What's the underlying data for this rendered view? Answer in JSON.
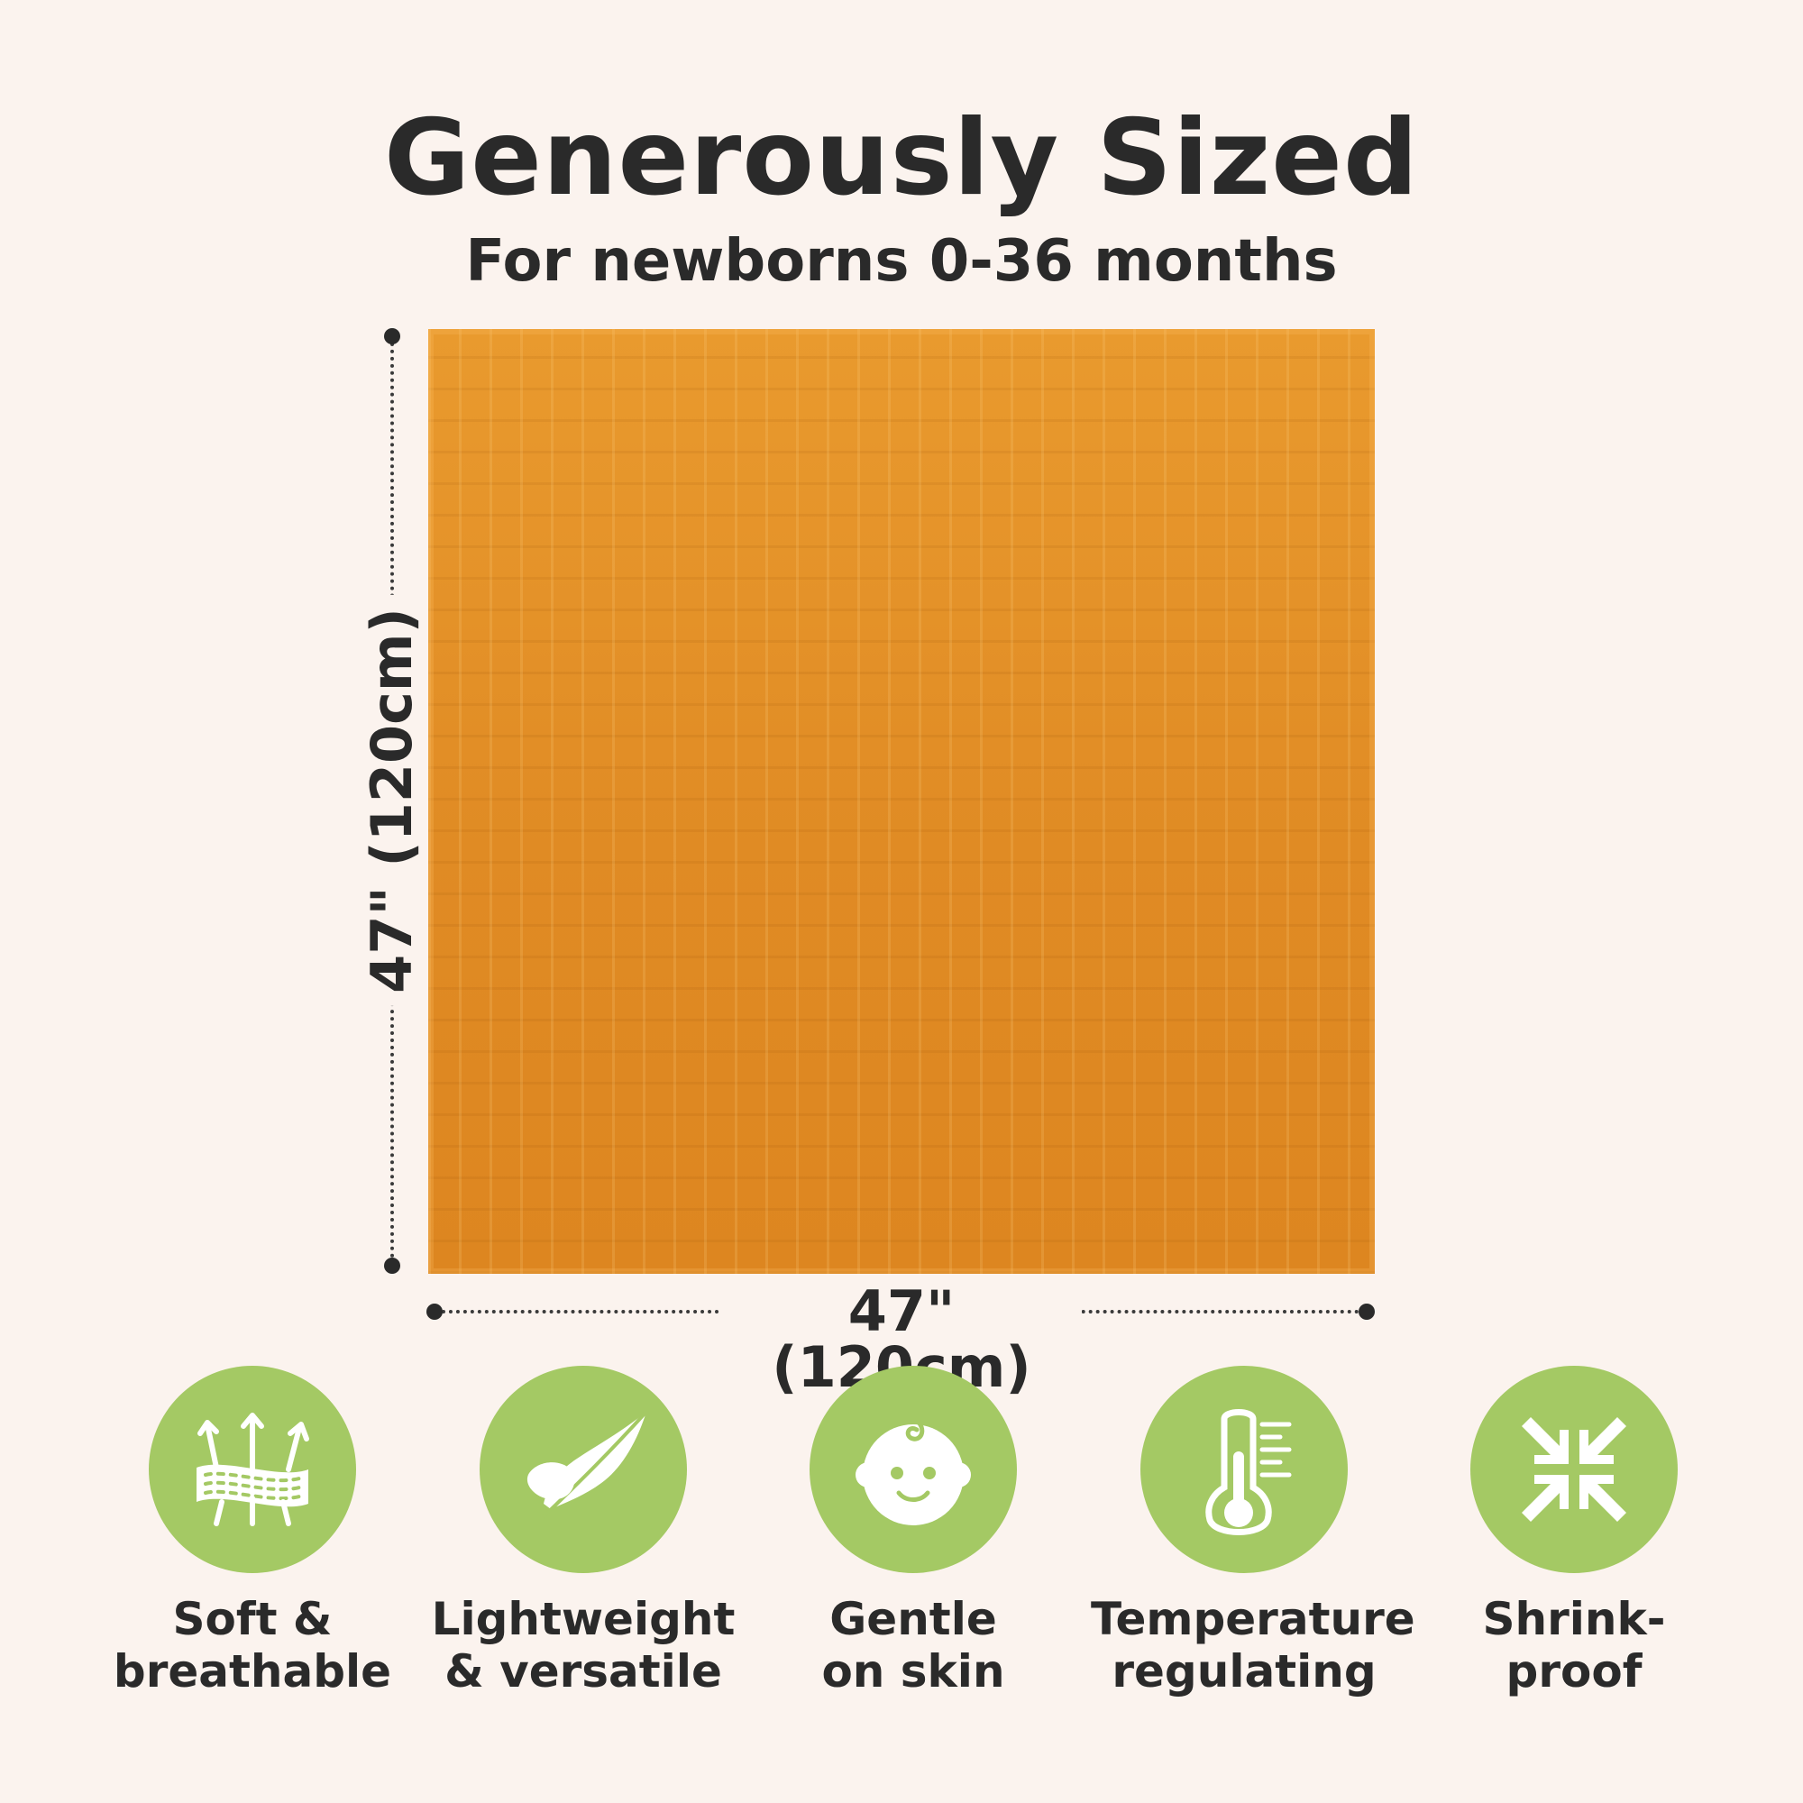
{
  "header": {
    "title": "Generously Sized",
    "subtitle": "For newborns 0-36 months"
  },
  "dimensions": {
    "height_label": "47\" (120cm)",
    "width_label": "47\" (120cm)"
  },
  "colors": {
    "background": "#fbf3ee",
    "blanket": "#e08a24",
    "badge": "#a4c964",
    "text": "#2a2a2a"
  },
  "features": [
    {
      "icon": "breathable-fabric-icon",
      "line1": "Soft &",
      "line2": "breathable"
    },
    {
      "icon": "feather-icon",
      "line1": "Lightweight",
      "line2": "& versatile"
    },
    {
      "icon": "baby-face-icon",
      "line1": "Gentle",
      "line2": "on skin"
    },
    {
      "icon": "thermometer-icon",
      "line1": "Temperature",
      "line2": "regulating"
    },
    {
      "icon": "shrink-arrows-icon",
      "line1": "Shrink-",
      "line2": "proof"
    }
  ]
}
